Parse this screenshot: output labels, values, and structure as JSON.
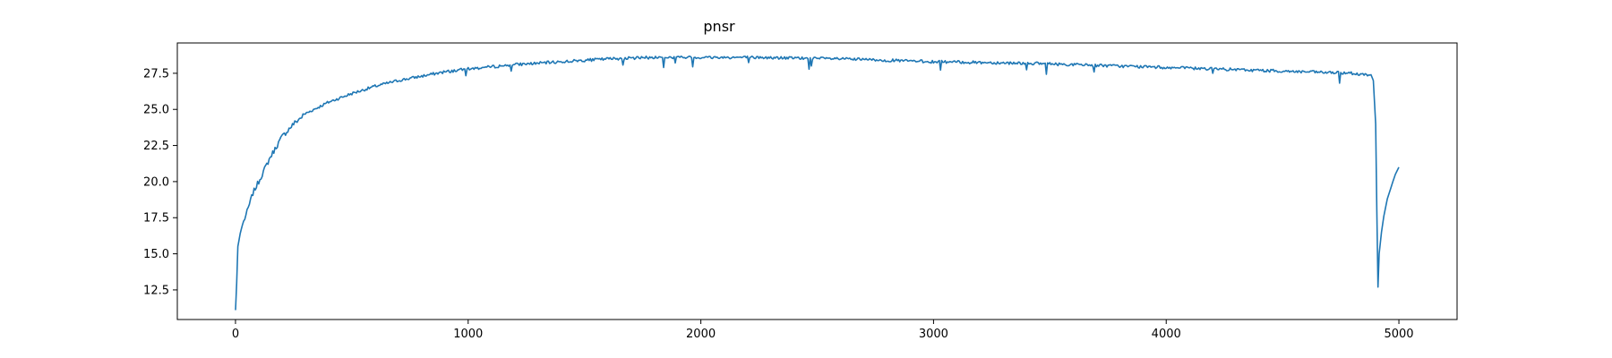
{
  "chart_data": {
    "type": "line",
    "title": "pnsr",
    "xlabel": "",
    "ylabel": "",
    "xlim": [
      -250,
      5250
    ],
    "ylim": [
      10.45,
      29.6
    ],
    "xticks": [
      0,
      1000,
      2000,
      3000,
      4000,
      5000
    ],
    "xtick_labels": [
      "0",
      "1000",
      "2000",
      "3000",
      "4000",
      "5000"
    ],
    "yticks": [
      12.5,
      15.0,
      17.5,
      20.0,
      22.5,
      25.0,
      27.5
    ],
    "ytick_labels": [
      "12.5",
      "15.0",
      "17.5",
      "20.0",
      "22.5",
      "25.0",
      "27.5"
    ],
    "grid": false,
    "legend": "none",
    "line_color": "#1f77b4",
    "series": [
      {
        "x": [
          0,
          5,
          10,
          20,
          30,
          50,
          75,
          100,
          150,
          200,
          250,
          300,
          400,
          500,
          600,
          700,
          800,
          900,
          1000,
          1200,
          1400,
          1600,
          1800,
          2000,
          2200,
          2400,
          2600,
          2800,
          3000,
          3200,
          3400,
          3600,
          3800,
          4000,
          4200,
          4400,
          4600,
          4800,
          4880,
          4890,
          4900,
          4905,
          4910,
          4915,
          4925,
          4935,
          4950,
          4970,
          4985,
          5000
        ],
        "y": [
          11.1,
          13.0,
          15.5,
          16.4,
          17.0,
          17.9,
          19.2,
          20.0,
          21.7,
          23.1,
          24.0,
          24.7,
          25.5,
          26.1,
          26.6,
          27.0,
          27.3,
          27.6,
          27.8,
          28.1,
          28.3,
          28.5,
          28.6,
          28.6,
          28.6,
          28.55,
          28.5,
          28.4,
          28.3,
          28.25,
          28.2,
          28.1,
          28.0,
          27.9,
          27.8,
          27.7,
          27.6,
          27.5,
          27.4,
          27.0,
          24.0,
          18.0,
          12.7,
          15.0,
          16.5,
          17.6,
          18.8,
          19.8,
          20.5,
          21.0
        ]
      }
    ]
  }
}
